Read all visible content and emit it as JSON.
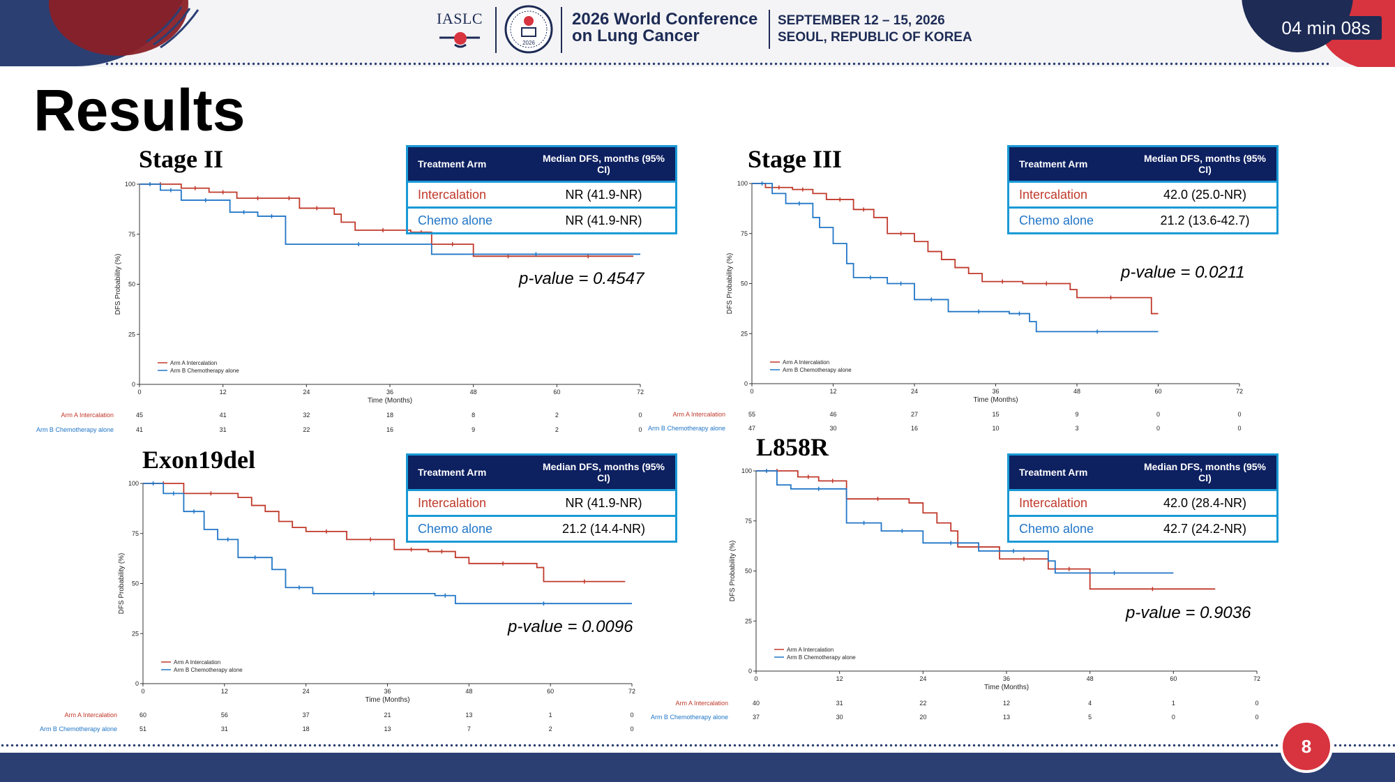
{
  "header": {
    "org": "IASLC",
    "conference_title": "2026 World Conference on Lung Cancer",
    "conference_dates": "SEPTEMBER 12 – 15, 2026",
    "conference_location": "SEOUL, REPUBLIC OF KOREA",
    "seal_year": "2026",
    "timer": "04 min 08s"
  },
  "slide": {
    "title": "Results",
    "page_number": "8"
  },
  "colors": {
    "arm_a": "#c0392b",
    "arm_b": "#2176c7",
    "navy": "#0d2060",
    "table_border": "#1a9ad6"
  },
  "table_headers": {
    "arm": "Treatment Arm",
    "median": "Median DFS, months (95% CI)"
  },
  "panels": [
    {
      "label": "Stage II",
      "p_value": "p-value = 0.4547",
      "table": [
        {
          "arm": "Intercalation",
          "median": "NR (41.9-NR)"
        },
        {
          "arm": "Chemo alone",
          "median": "NR (41.9-NR)"
        }
      ],
      "risk_table": [
        {
          "name": "Arm A Intercalation",
          "values": [
            "45",
            "41",
            "32",
            "18",
            "8",
            "2",
            "0"
          ]
        },
        {
          "name": "Arm B Chemotherapy alone",
          "values": [
            "41",
            "31",
            "22",
            "16",
            "9",
            "2",
            "0"
          ]
        }
      ]
    },
    {
      "label": "Stage III",
      "p_value": "p-value = 0.0211",
      "table": [
        {
          "arm": "Intercalation",
          "median": "42.0 (25.0-NR)"
        },
        {
          "arm": "Chemo alone",
          "median": "21.2 (13.6-42.7)"
        }
      ],
      "risk_table": [
        {
          "name": "Arm A Intercalation",
          "values": [
            "55",
            "46",
            "27",
            "15",
            "9",
            "0",
            "0"
          ]
        },
        {
          "name": "Arm B Chemotherapy alone",
          "values": [
            "47",
            "30",
            "16",
            "10",
            "3",
            "0",
            "0"
          ]
        }
      ]
    },
    {
      "label": "Exon19del",
      "p_value": "p-value = 0.0096",
      "table": [
        {
          "arm": "Intercalation",
          "median": "NR (41.9-NR)"
        },
        {
          "arm": "Chemo alone",
          "median": "21.2 (14.4-NR)"
        }
      ],
      "risk_table": [
        {
          "name": "Arm A Intercalation",
          "values": [
            "60",
            "56",
            "37",
            "21",
            "13",
            "1",
            "0"
          ]
        },
        {
          "name": "Arm B Chemotherapy alone",
          "values": [
            "51",
            "31",
            "18",
            "13",
            "7",
            "2",
            "0"
          ]
        }
      ]
    },
    {
      "label": "L858R",
      "p_value": "p-value = 0.9036",
      "table": [
        {
          "arm": "Intercalation",
          "median": "42.0 (28.4-NR)"
        },
        {
          "arm": "Chemo alone",
          "median": "42.7 (24.2-NR)"
        }
      ],
      "risk_table": [
        {
          "name": "Arm A Intercalation",
          "values": [
            "40",
            "31",
            "22",
            "12",
            "4",
            "1",
            "0"
          ]
        },
        {
          "name": "Arm B Chemotherapy alone",
          "values": [
            "37",
            "30",
            "20",
            "13",
            "5",
            "0",
            "0"
          ]
        }
      ]
    }
  ],
  "chart_data": [
    {
      "type": "line",
      "step": true,
      "xlabel": "Time (Months)",
      "ylabel": "DFS Probability (%)",
      "xticks": [
        0,
        12,
        24,
        36,
        48,
        60,
        72
      ],
      "yticks": [
        0,
        25,
        50,
        75,
        100
      ],
      "xlim": [
        0,
        72
      ],
      "ylim": [
        0,
        100
      ],
      "legend_position": "bottom-left",
      "series": [
        {
          "name": "Arm A Intercalation",
          "points": [
            [
              0,
              100
            ],
            [
              6,
              98
            ],
            [
              10,
              96
            ],
            [
              14,
              93
            ],
            [
              20,
              93
            ],
            [
              23,
              88
            ],
            [
              28,
              85
            ],
            [
              29,
              81
            ],
            [
              31,
              77
            ],
            [
              39,
              76
            ],
            [
              42,
              70
            ],
            [
              48,
              64
            ],
            [
              58,
              64
            ],
            [
              71,
              64
            ]
          ]
        },
        {
          "name": "Arm B Chemotherapy alone",
          "points": [
            [
              0,
              100
            ],
            [
              3,
              97
            ],
            [
              6,
              92
            ],
            [
              13,
              86
            ],
            [
              17,
              84
            ],
            [
              21,
              70
            ],
            [
              42,
              70
            ],
            [
              42,
              65
            ],
            [
              72,
              65
            ]
          ]
        }
      ]
    },
    {
      "type": "line",
      "step": true,
      "xlabel": "Time (Months)",
      "ylabel": "DFS Probability (%)",
      "xticks": [
        0,
        12,
        24,
        36,
        48,
        60,
        72
      ],
      "yticks": [
        0,
        25,
        50,
        75,
        100
      ],
      "xlim": [
        0,
        72
      ],
      "ylim": [
        0,
        100
      ],
      "legend_position": "bottom-left",
      "series": [
        {
          "name": "Arm A Intercalation",
          "points": [
            [
              0,
              100
            ],
            [
              2,
              98
            ],
            [
              6,
              97
            ],
            [
              9,
              95
            ],
            [
              11,
              92
            ],
            [
              15,
              87
            ],
            [
              18,
              83
            ],
            [
              20,
              75
            ],
            [
              24,
              71
            ],
            [
              26,
              66
            ],
            [
              28,
              62
            ],
            [
              30,
              58
            ],
            [
              32,
              55
            ],
            [
              34,
              51
            ],
            [
              40,
              50
            ],
            [
              47,
              47
            ],
            [
              48,
              43
            ],
            [
              58,
              43
            ],
            [
              59,
              35
            ],
            [
              60,
              35
            ]
          ]
        },
        {
          "name": "Arm B Chemotherapy alone",
          "points": [
            [
              0,
              100
            ],
            [
              3,
              95
            ],
            [
              5,
              90
            ],
            [
              9,
              83
            ],
            [
              10,
              78
            ],
            [
              12,
              70
            ],
            [
              14,
              60
            ],
            [
              15,
              53
            ],
            [
              20,
              50
            ],
            [
              24,
              42
            ],
            [
              29,
              36
            ],
            [
              38,
              35
            ],
            [
              41,
              31
            ],
            [
              42,
              26
            ],
            [
              60,
              26
            ]
          ]
        }
      ]
    },
    {
      "type": "line",
      "step": true,
      "xlabel": "Time (Months)",
      "ylabel": "DFS Probability (%)",
      "xticks": [
        0,
        12,
        24,
        36,
        48,
        60,
        72
      ],
      "yticks": [
        0,
        25,
        50,
        75,
        100
      ],
      "xlim": [
        0,
        72
      ],
      "ylim": [
        0,
        100
      ],
      "legend_position": "bottom-left",
      "series": [
        {
          "name": "Arm A Intercalation",
          "points": [
            [
              0,
              100
            ],
            [
              6,
              95
            ],
            [
              14,
              93
            ],
            [
              16,
              89
            ],
            [
              18,
              86
            ],
            [
              20,
              81
            ],
            [
              22,
              78
            ],
            [
              24,
              76
            ],
            [
              30,
              72
            ],
            [
              37,
              67
            ],
            [
              42,
              66
            ],
            [
              46,
              63
            ],
            [
              48,
              60
            ],
            [
              58,
              58
            ],
            [
              59,
              51
            ],
            [
              71,
              51
            ]
          ]
        },
        {
          "name": "Arm B Chemotherapy alone",
          "points": [
            [
              0,
              100
            ],
            [
              3,
              95
            ],
            [
              6,
              86
            ],
            [
              9,
              77
            ],
            [
              11,
              72
            ],
            [
              14,
              63
            ],
            [
              19,
              57
            ],
            [
              21,
              48
            ],
            [
              25,
              45
            ],
            [
              43,
              44
            ],
            [
              46,
              40
            ],
            [
              72,
              40
            ]
          ]
        }
      ]
    },
    {
      "type": "line",
      "step": true,
      "xlabel": "Time (Months)",
      "ylabel": "DFS Probability (%)",
      "xticks": [
        0,
        12,
        24,
        36,
        48,
        60,
        72
      ],
      "yticks": [
        0,
        25,
        50,
        75,
        100
      ],
      "xlim": [
        0,
        72
      ],
      "ylim": [
        0,
        100
      ],
      "legend_position": "bottom-left",
      "series": [
        {
          "name": "Arm A Intercalation",
          "points": [
            [
              0,
              100
            ],
            [
              6,
              97
            ],
            [
              9,
              95
            ],
            [
              13,
              86
            ],
            [
              22,
              84
            ],
            [
              24,
              79
            ],
            [
              26,
              74
            ],
            [
              28,
              70
            ],
            [
              29,
              62
            ],
            [
              35,
              56
            ],
            [
              42,
              51
            ],
            [
              48,
              41
            ],
            [
              66,
              41
            ]
          ]
        },
        {
          "name": "Arm B Chemotherapy alone",
          "points": [
            [
              0,
              100
            ],
            [
              3,
              93
            ],
            [
              5,
              91
            ],
            [
              13,
              74
            ],
            [
              18,
              70
            ],
            [
              24,
              64
            ],
            [
              32,
              60
            ],
            [
              42,
              55
            ],
            [
              43,
              49
            ],
            [
              60,
              49
            ]
          ]
        }
      ]
    }
  ]
}
